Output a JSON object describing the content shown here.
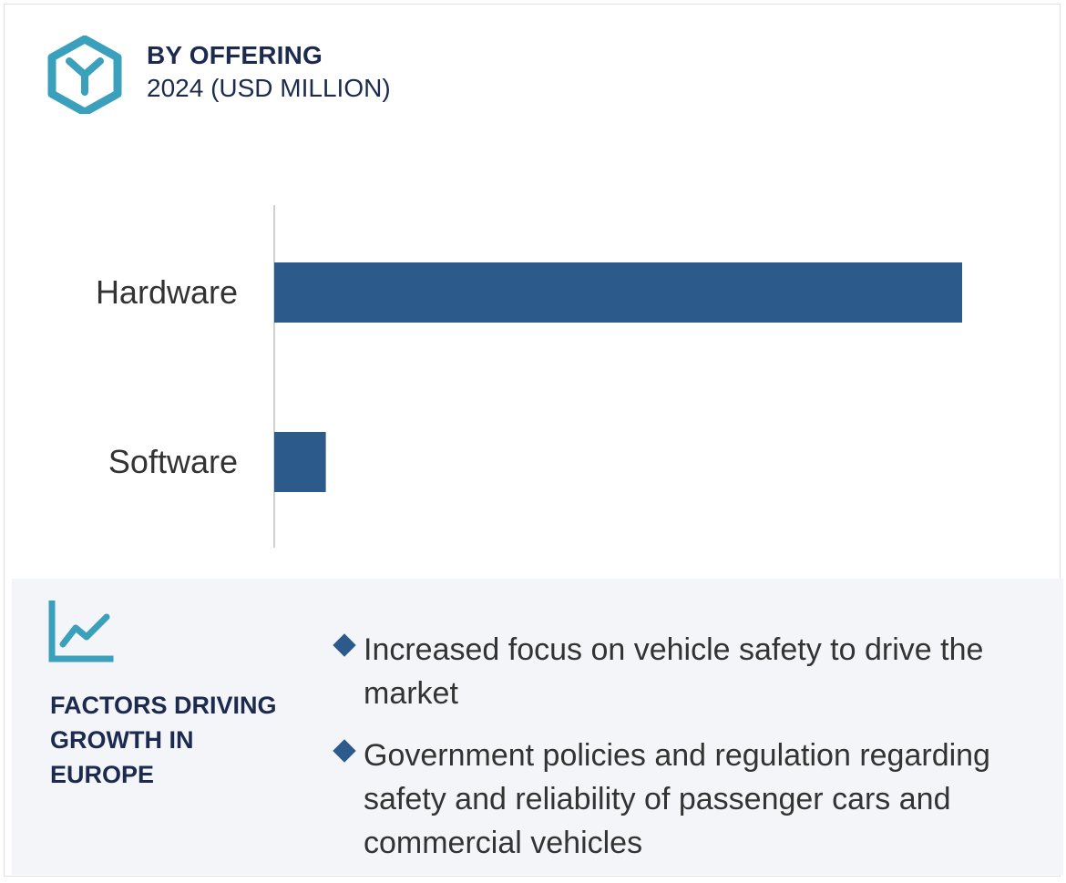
{
  "header": {
    "title": "BY OFFERING",
    "subtitle": "2024 (USD MILLION)"
  },
  "icons": {
    "logo": "hexagon-y-logo-icon",
    "trend": "trend-chart-icon"
  },
  "colors": {
    "bar": "#2c5a8a",
    "accent": "#3aa0bc",
    "heading": "#1b2a4e",
    "panel_bg": "#f4f5f9"
  },
  "chart_data": {
    "type": "bar",
    "orientation": "horizontal",
    "categories": [
      "Hardware",
      "Software"
    ],
    "values": [
      100,
      7.5
    ],
    "title": "BY OFFERING",
    "subtitle": "2024 (USD MILLION)",
    "xlabel": "",
    "ylabel": "",
    "xlim": [
      0,
      100
    ],
    "grid": false,
    "value_axis_labels": false
  },
  "factors": {
    "heading": "FACTORS DRIVING GROWTH IN EUROPE",
    "items": [
      "Increased focus on vehicle safety to drive the market",
      "Government policies and regulation regarding safety and reliability of passenger cars and commercial vehicles"
    ]
  }
}
